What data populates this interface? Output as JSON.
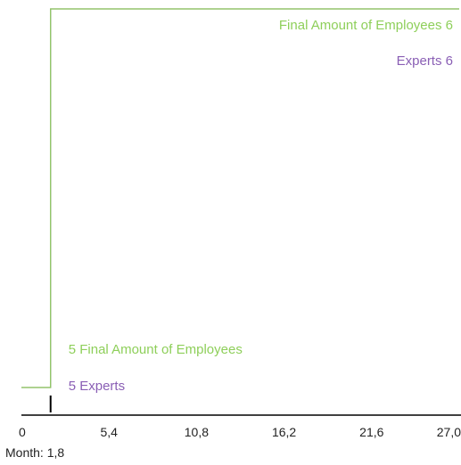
{
  "chart_data": {
    "type": "line",
    "step": true,
    "x": [
      0,
      1.8,
      27.0
    ],
    "series": [
      {
        "name": "Final Amount of Employees",
        "values": [
          5,
          6,
          6
        ],
        "color": "#8ecf5a",
        "start_label": "5",
        "end_label": "6"
      },
      {
        "name": "Experts",
        "values": [
          5,
          6,
          6
        ],
        "color": "#8a5fb5",
        "start_label": "5",
        "end_label": "6"
      }
    ],
    "xlim": [
      0,
      27.0
    ],
    "x_ticks": [
      "0",
      "5,4",
      "10,8",
      "16,2",
      "21,6",
      "27,0"
    ],
    "cursor_x": 1.8,
    "grid": false
  },
  "readout": {
    "label": "Month:",
    "value": "1,8"
  }
}
